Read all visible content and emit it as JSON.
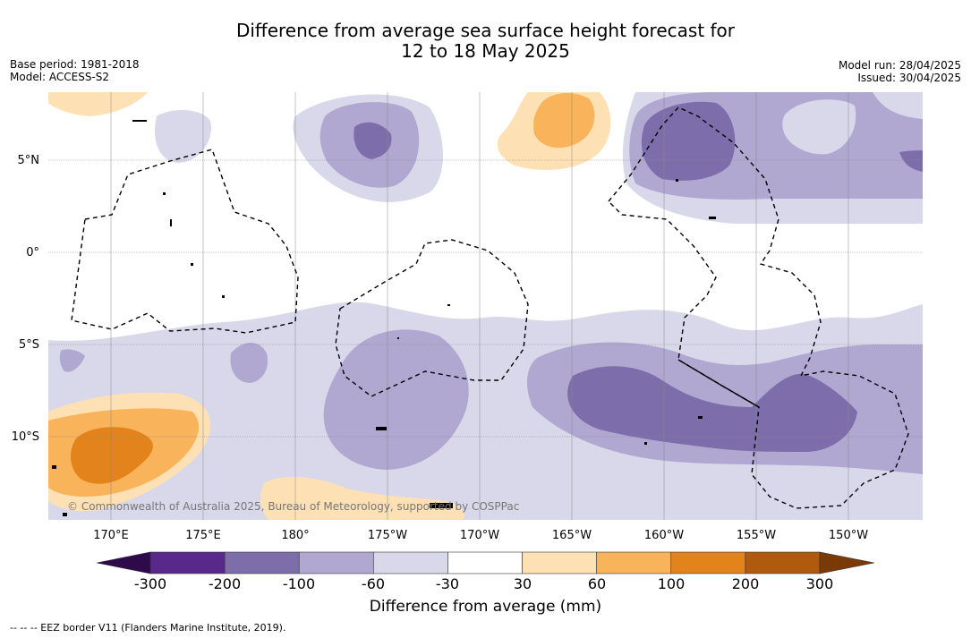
{
  "title_line1": "Difference from average sea surface height forecast for",
  "title_line2": "12 to 18 May 2025",
  "base_period": "Base period: 1981-2018",
  "model": "Model: ACCESS-S2",
  "model_run": "Model run: 28/04/2025",
  "issued": "Issued: 30/04/2025",
  "copyright": "© Commonwealth of Australia 2025, Bureau of Meteorology, supported by COSPPac",
  "lon_labels": [
    "170°E",
    "175°E",
    "180°",
    "175°W",
    "170°W",
    "165°W",
    "160°W",
    "155°W",
    "150°W"
  ],
  "lat_labels": [
    "5°N",
    "0°",
    "5°S",
    "10°S"
  ],
  "colorbar": {
    "ticks": [
      "-300",
      "-200",
      "-100",
      "-60",
      "-30",
      "30",
      "60",
      "100",
      "200",
      "300"
    ],
    "colors": [
      "#58288a",
      "#7d6eab",
      "#b0a8d1",
      "#d8d8ea",
      "#ffffff",
      "#fde0b4",
      "#f9b45b",
      "#e3831b",
      "#b05a0d"
    ],
    "under_color": "#2e0a4a",
    "over_color": "#7a3a08",
    "label": "Difference from average (mm)"
  },
  "footnote": "--  --  -- EEZ border V11 (Flanders Marine Institute, 2019)."
}
